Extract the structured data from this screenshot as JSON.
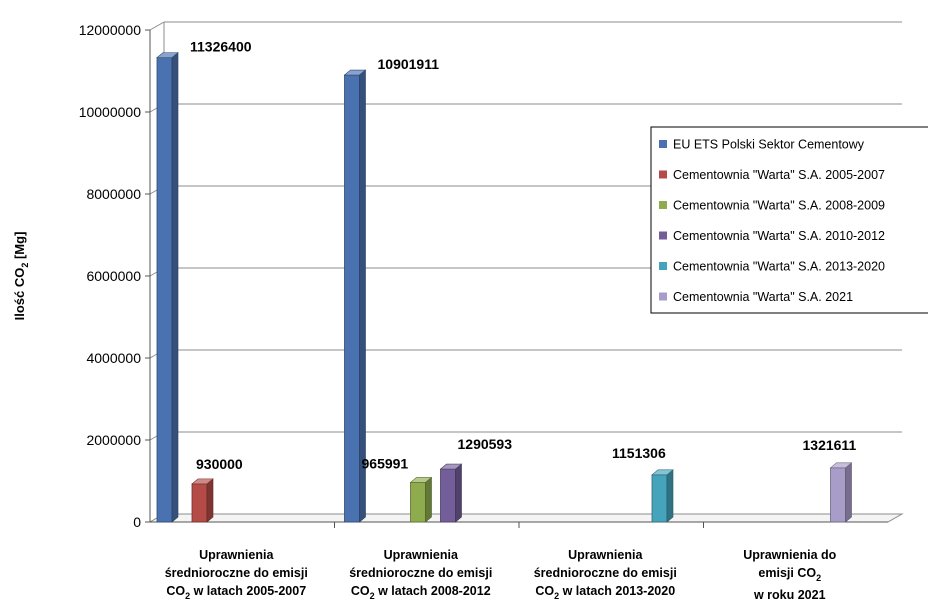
{
  "chart_data": {
    "type": "bar",
    "ylabel": "Ilość CO2 [Mg]",
    "ylim": [
      0,
      12000000
    ],
    "y_ticks": [
      "0",
      "2000000",
      "4000000",
      "6000000",
      "8000000",
      "10000000",
      "12000000"
    ],
    "grid": true,
    "legend_position": "right",
    "categories": [
      [
        "Uprawnienia",
        "średnioroczne do emisji",
        "CO2 w latach 2005-2007"
      ],
      [
        "Uprawnienia",
        "średnioroczne do emisji",
        "CO2 w latach 2008-2012"
      ],
      [
        "Uprawnienia",
        "średnioroczne do emisji",
        "CO2 w latach 2013-2020"
      ],
      [
        "Uprawnienia do",
        "emisji CO2",
        "w roku 2021"
      ]
    ],
    "series": [
      {
        "name": "EU ETS Polski Sektor Cementowy",
        "color": "#4a72b0",
        "values": [
          11326400,
          10901911,
          null,
          null
        ],
        "labels": [
          "11326400",
          "10901911",
          "",
          ""
        ]
      },
      {
        "name": "Cementownia \"Warta\" S.A. 2005-2007",
        "color": "#b44b47",
        "values": [
          930000,
          null,
          null,
          null
        ],
        "labels": [
          "930000",
          "",
          "",
          ""
        ]
      },
      {
        "name": "Cementownia \"Warta\" S.A. 2008-2009",
        "color": "#8eab4e",
        "values": [
          null,
          965991,
          null,
          null
        ],
        "labels": [
          "",
          "965991",
          "",
          ""
        ]
      },
      {
        "name": "Cementownia \"Warta\" S.A. 2010-2012",
        "color": "#745e99",
        "values": [
          null,
          1290593,
          null,
          null
        ],
        "labels": [
          "",
          "1290593",
          "",
          ""
        ]
      },
      {
        "name": "Cementownia \"Warta\" S.A. 2013-2020",
        "color": "#45a3bb",
        "values": [
          null,
          null,
          1151306,
          null
        ],
        "labels": [
          "",
          "",
          "1151306",
          ""
        ]
      },
      {
        "name": "Cementownia \"Warta\" S.A. 2021",
        "color": "#a89dc8",
        "values": [
          null,
          null,
          null,
          1321611
        ],
        "labels": [
          "",
          "",
          "",
          "1321611"
        ]
      }
    ]
  }
}
